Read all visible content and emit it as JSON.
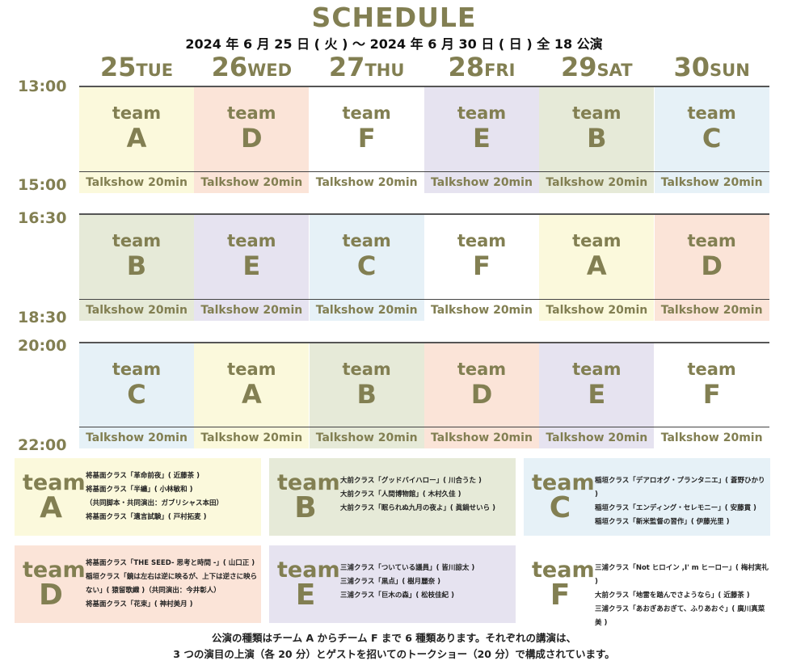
{
  "title": "SCHEDULE",
  "subtitle": "2024 年 6 月 25 日 ( 火 ) 〜 2024 年 6 月 30 日 ( 日 ) 全 18 公演",
  "days": [
    {
      "num": "25",
      "wd": "TUE"
    },
    {
      "num": "26",
      "wd": "WED"
    },
    {
      "num": "27",
      "wd": "THU"
    },
    {
      "num": "28",
      "wd": "FRI"
    },
    {
      "num": "29",
      "wd": "SAT"
    },
    {
      "num": "30",
      "wd": "SUN"
    }
  ],
  "times": [
    "13:00",
    "15:00",
    "16:30",
    "18:30",
    "20:00",
    "22:00"
  ],
  "team_word": "team",
  "talkshow": "Talkshow 20min",
  "colors": {
    "A": "#fbf9dc",
    "B": "#e6ead8",
    "C": "#e6f1f7",
    "D": "#fbe4d8",
    "E": "#e6e3f0",
    "F": "#ffffff",
    "text": "#827f52"
  },
  "slots": [
    [
      "A",
      "D",
      "F",
      "E",
      "B",
      "C"
    ],
    [
      "B",
      "E",
      "C",
      "F",
      "A",
      "D"
    ],
    [
      "C",
      "A",
      "B",
      "D",
      "E",
      "F"
    ]
  ],
  "teams": [
    {
      "id": "A",
      "lines": [
        "将基面クラス「革命前夜」( 近藤茶 )",
        "将基面クラス「半纏」( 小林敏和 )",
        "（共同脚本・共同演出：ガブリシャス本田）",
        "将基面クラス「遺言試験」( 戸村拓麦 )"
      ]
    },
    {
      "id": "B",
      "lines": [
        "大前クラス「グッドバイハロー」( 川合うた )",
        "大前クラス「人間博物館」( 木村久佳 )",
        "大前クラス「眠られぬ九月の夜よ」( 眞鍋せいら )"
      ]
    },
    {
      "id": "C",
      "lines": [
        "稲垣クラス「デアロオグ・プランタニエ」( 蒼野ひかり )",
        "稲垣クラス「エンディング・セレモニー」( 安藤貫 )",
        "稲垣クラス「新米監督の習作」( 伊藤光里 )"
      ]
    },
    {
      "id": "D",
      "lines": [
        "将基面クラス「THE SEED- 思考と時間 -」( 山口正 )",
        "稲垣クラス「鏡は左右は逆に映るが、上下は逆さに映らない」( 猿留歌織 )（共同演出：今井彰人）",
        "将基面クラス「花束」( 神村美月 )"
      ]
    },
    {
      "id": "E",
      "lines": [
        "三浦クラス「ついている議員」( 皆川諒太 )",
        "三浦クラス「黒点」( 樹月麗奈 )",
        "三浦クラス「巨木の森」( 松枝佳紀 )"
      ]
    },
    {
      "id": "F",
      "lines": [
        "三浦クラス「Not ヒロイン ,I' m ヒーロー」( 梅村実礼 )",
        "大前クラス「地雷を踏んでさようなら」( 近藤茶 )",
        "三浦クラス「あおぎあおぎて、ふりあおぐ」( 廣川真菜美 )"
      ]
    }
  ],
  "footer": [
    "公演の種類はチーム A からチーム F まで 6 種類あります。それぞれの講演は、",
    "3 つの演目の上演（各 20 分）とゲストを招いてのトークショー（20 分）で構成されています。"
  ]
}
